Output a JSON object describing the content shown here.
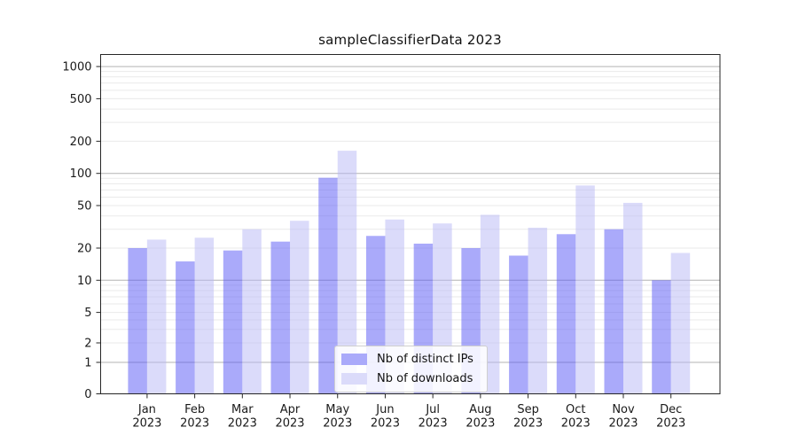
{
  "chart_data": {
    "type": "bar",
    "title": "sampleClassifierData 2023",
    "categories": [
      "Jan 2023",
      "Feb 2023",
      "Mar 2023",
      "Apr 2023",
      "May 2023",
      "Jun 2023",
      "Jul 2023",
      "Aug 2023",
      "Sep 2023",
      "Oct 2023",
      "Nov 2023",
      "Dec 2023"
    ],
    "series": [
      {
        "name": "Nb of distinct IPs",
        "color": "#aaaafa",
        "values": [
          20,
          15,
          19,
          23,
          91,
          26,
          22,
          20,
          17,
          27,
          30,
          10
        ]
      },
      {
        "name": "Nb of downloads",
        "color": "#dbdbfa",
        "values": [
          24,
          25,
          30,
          36,
          163,
          37,
          34,
          41,
          31,
          77,
          53,
          18
        ]
      }
    ],
    "yscale": "symlog",
    "yticks": [
      0,
      1,
      2,
      5,
      10,
      20,
      50,
      100,
      200,
      500,
      1000
    ],
    "ylim": [
      0,
      1300
    ],
    "xlabel": "",
    "ylabel": "",
    "grid": "horizontal major and minor",
    "legend_position": "lower center"
  },
  "colors": {
    "major_grid": "#b3b3b3",
    "minor_grid": "#eaeaea",
    "axis": "#262626",
    "text": "#1a1a1a",
    "legend_border": "#cfcfcf",
    "background": "#ffffff"
  }
}
